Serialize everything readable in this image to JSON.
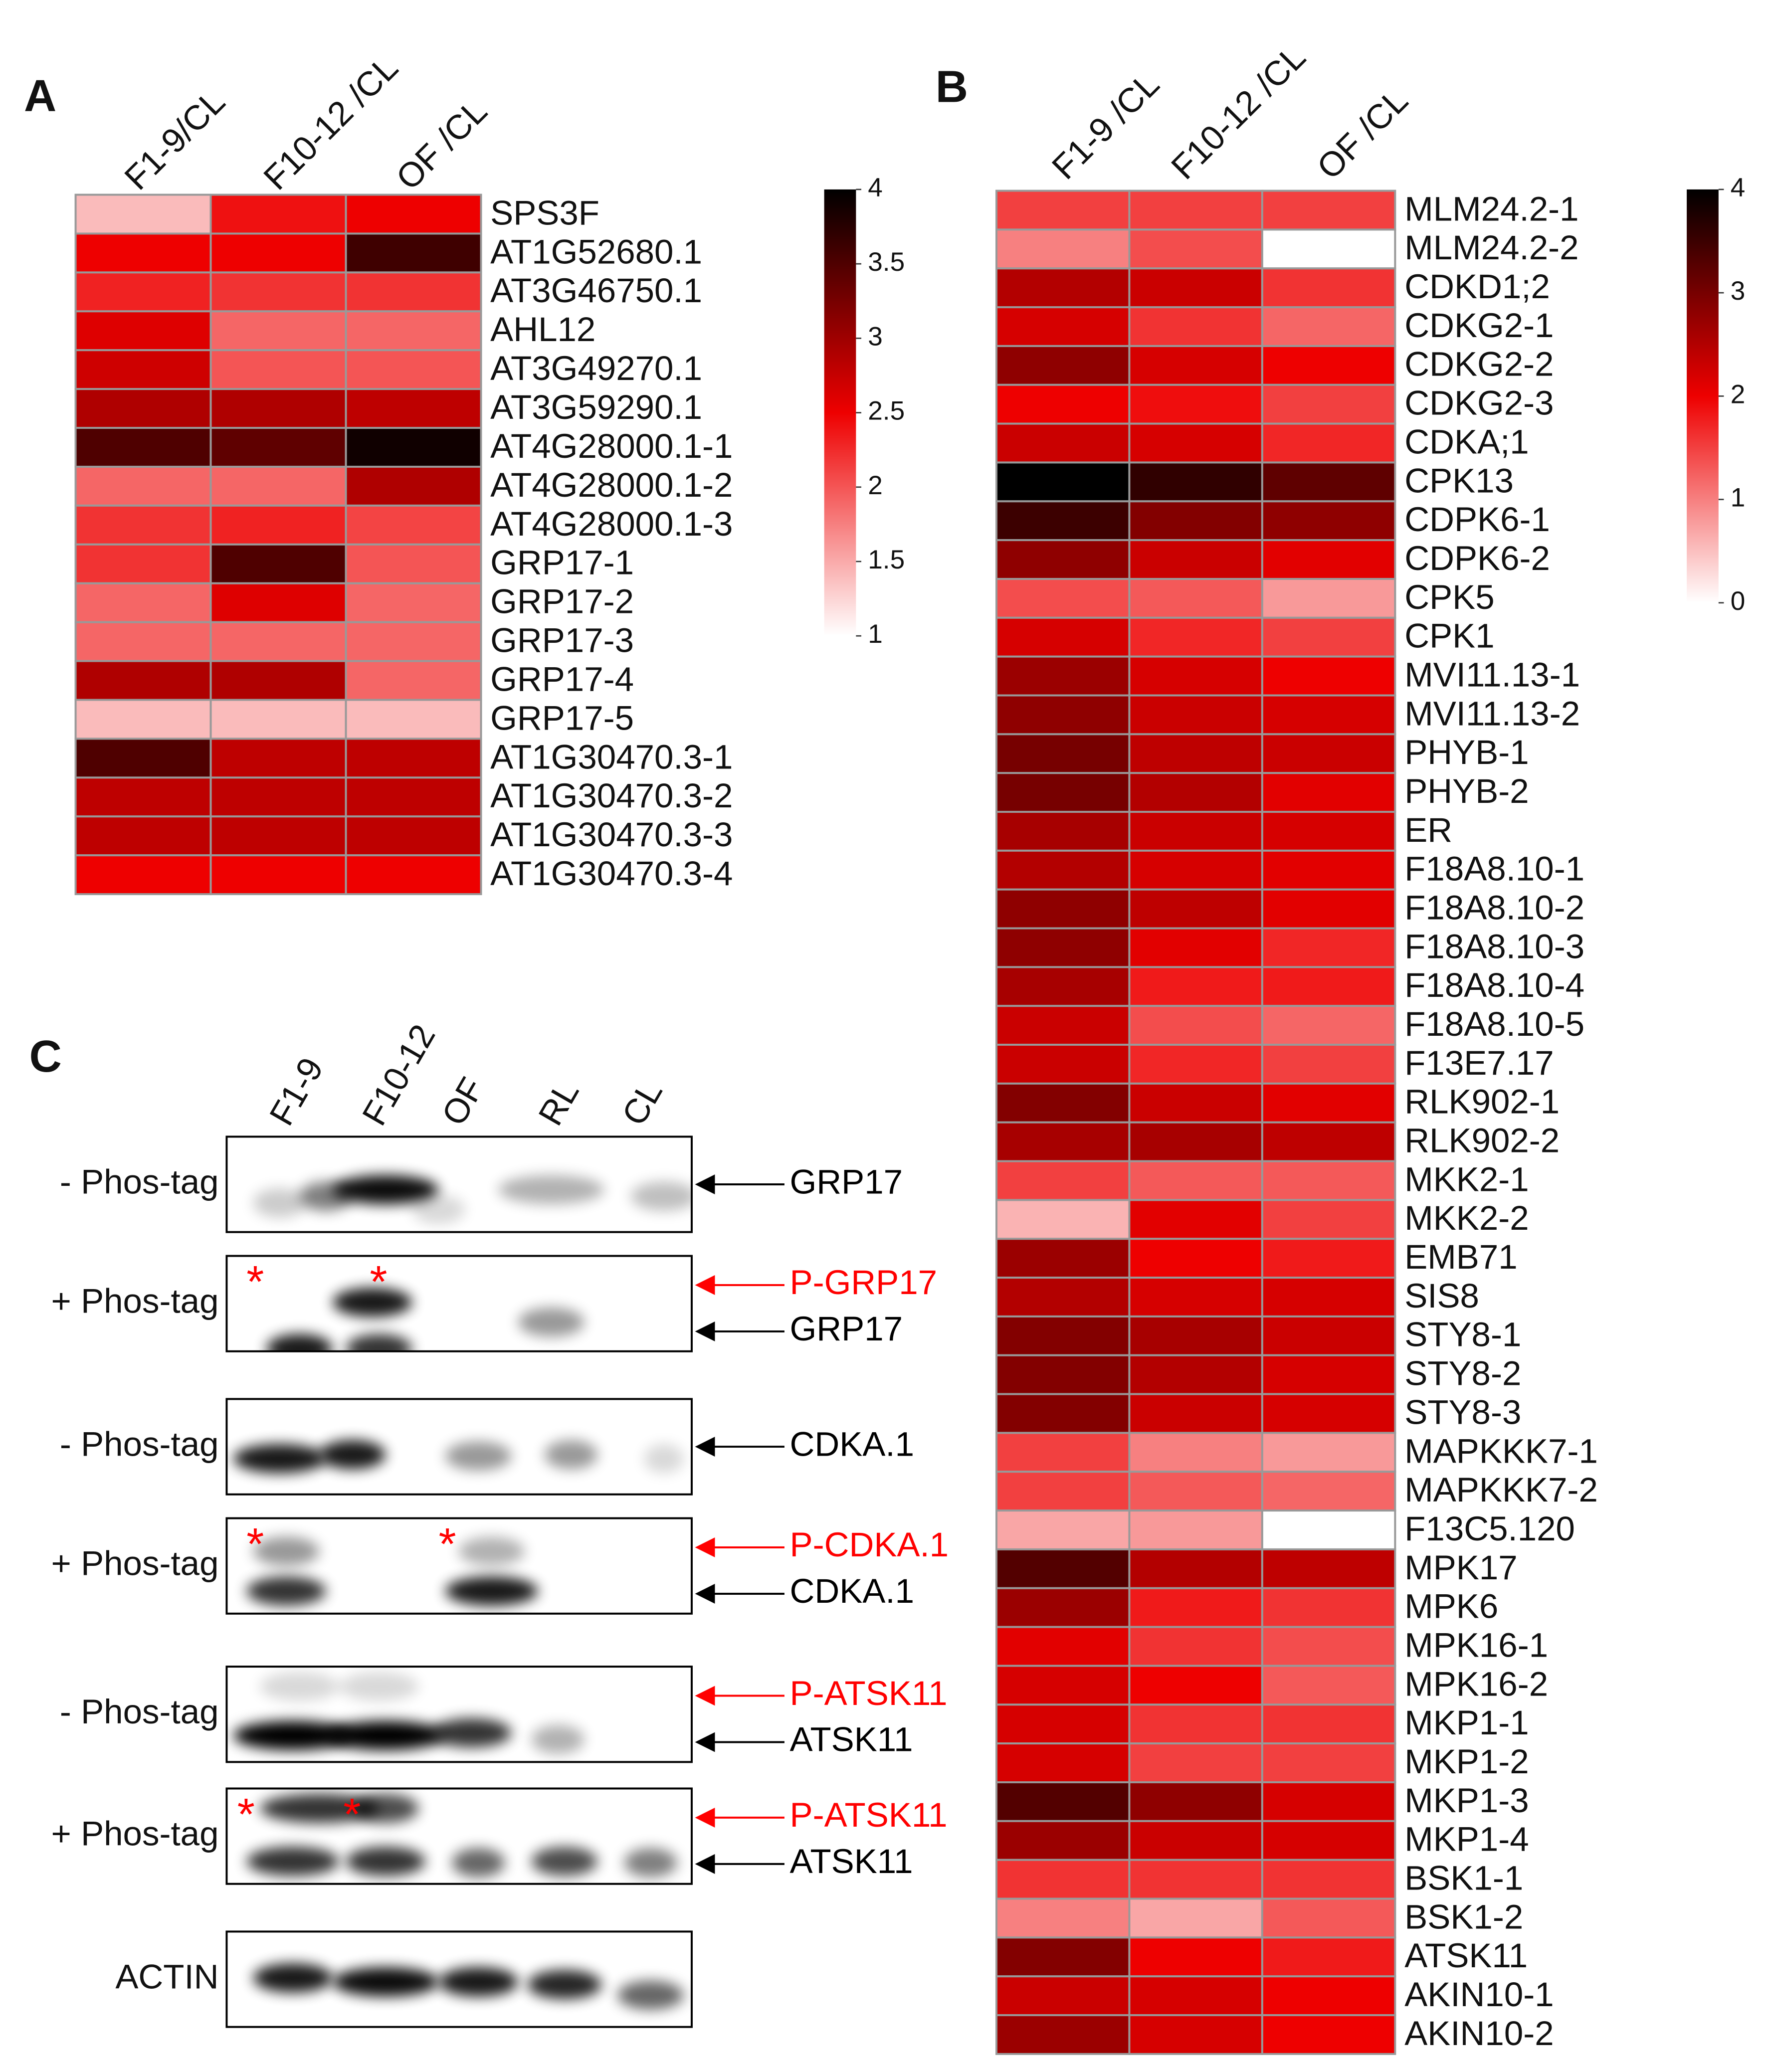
{
  "chart_data": [
    {
      "type": "heatmap",
      "panel": "A",
      "columns": [
        "F1-9/CL",
        "F10-12 /CL",
        "OF /CL"
      ],
      "rows": [
        "SPS3F",
        "AT1G52680.1",
        "AT3G46750.1",
        "AHL12",
        "AT3G49270.1",
        "AT3G59290.1",
        "AT4G28000.1-1",
        "AT4G28000.1-2",
        "AT4G28000.1-3",
        "GRP17-1",
        "GRP17-2",
        "GRP17-3",
        "GRP17-4",
        "GRP17-5",
        "AT1G30470.3-1",
        "AT1G30470.3-2",
        "AT1G30470.3-3",
        "AT1G30470.3-4"
      ],
      "values": [
        [
          1.4,
          2.4,
          2.5
        ],
        [
          2.5,
          2.5,
          3.6
        ],
        [
          2.3,
          2.2,
          2.2
        ],
        [
          2.6,
          1.9,
          1.9
        ],
        [
          2.7,
          2.0,
          2.0
        ],
        [
          2.9,
          2.9,
          2.8
        ],
        [
          3.5,
          3.4,
          3.9
        ],
        [
          1.9,
          1.9,
          2.9
        ],
        [
          2.2,
          2.3,
          2.1
        ],
        [
          2.2,
          3.5,
          2.0
        ],
        [
          1.9,
          2.6,
          1.9
        ],
        [
          1.9,
          1.9,
          1.9
        ],
        [
          2.9,
          2.9,
          1.9
        ],
        [
          1.4,
          1.4,
          1.4
        ],
        [
          3.5,
          2.8,
          2.8
        ],
        [
          2.8,
          2.8,
          2.8
        ],
        [
          2.8,
          2.8,
          2.8
        ],
        [
          2.5,
          2.5,
          2.5
        ]
      ],
      "clim": [
        1,
        4
      ],
      "cticks": [
        1,
        1.5,
        2,
        2.5,
        3,
        3.5,
        4
      ],
      "colors": [
        "#ffffff",
        "#ee0000",
        "#000000"
      ]
    },
    {
      "type": "heatmap",
      "panel": "B",
      "columns": [
        "F1-9 /CL",
        "F10-12 /CL",
        "OF /CL"
      ],
      "rows": [
        "MLM24.2-1",
        "MLM24.2-2",
        "CDKD1;2",
        "CDKG2-1",
        "CDKG2-2",
        "CDKG2-3",
        "CDKA;1",
        "CPK13",
        "CDPK6-1",
        "CDPK6-2",
        "CPK5",
        "CPK1",
        "MVI11.13-1",
        "MVI11.13-2",
        "PHYB-1",
        "PHYB-2",
        "ER",
        "F18A8.10-1",
        "F18A8.10-2",
        "F18A8.10-3",
        "F18A8.10-4",
        "F18A8.10-5",
        "F13E7.17",
        "RLK902-1",
        "RLK902-2",
        "MKK2-1",
        "MKK2-2",
        "EMB71",
        "SIS8",
        "STY8-1",
        "STY8-2",
        "STY8-3",
        "MAPKKK7-1",
        "MAPKKK7-2",
        "F13C5.120",
        "MPK17",
        "MPK6",
        "MPK16-1",
        "MPK16-2",
        "MKP1-1",
        "MKP1-2",
        "MKP1-3",
        "MKP1-4",
        "BSK1-1",
        "BSK1-2",
        "ATSK11",
        "AKIN10-1",
        "AKIN10-2"
      ],
      "values": [
        [
          1.5,
          1.5,
          1.5
        ],
        [
          1.0,
          1.4,
          0
        ],
        [
          2.5,
          2.3,
          1.6
        ],
        [
          2.2,
          1.6,
          1.2
        ],
        [
          2.8,
          2.2,
          2.0
        ],
        [
          2.0,
          1.9,
          1.5
        ],
        [
          2.3,
          2.2,
          1.7
        ],
        [
          4.0,
          3.6,
          3.2
        ],
        [
          3.5,
          2.9,
          2.8
        ],
        [
          2.8,
          2.3,
          2.1
        ],
        [
          1.4,
          1.3,
          0.8
        ],
        [
          2.2,
          1.7,
          1.5
        ],
        [
          2.7,
          2.2,
          2.0
        ],
        [
          2.8,
          2.3,
          2.2
        ],
        [
          3.0,
          2.4,
          2.3
        ],
        [
          3.0,
          2.5,
          2.1
        ],
        [
          2.6,
          2.3,
          2.2
        ],
        [
          2.5,
          2.2,
          2.1
        ],
        [
          2.8,
          2.4,
          2.1
        ],
        [
          2.8,
          2.1,
          1.7
        ],
        [
          2.6,
          1.8,
          1.8
        ],
        [
          2.3,
          1.4,
          1.2
        ],
        [
          2.3,
          1.7,
          1.5
        ],
        [
          2.9,
          2.3,
          2.1
        ],
        [
          2.6,
          2.6,
          2.4
        ],
        [
          1.5,
          1.3,
          1.3
        ],
        [
          0.6,
          2.1,
          1.5
        ],
        [
          2.7,
          2.0,
          1.8
        ],
        [
          2.5,
          2.2,
          2.2
        ],
        [
          2.9,
          2.6,
          2.3
        ],
        [
          2.9,
          2.5,
          2.2
        ],
        [
          2.9,
          2.3,
          2.2
        ],
        [
          1.5,
          1.0,
          0.8
        ],
        [
          1.5,
          1.3,
          1.2
        ],
        [
          0.7,
          0.8,
          0
        ],
        [
          3.3,
          2.5,
          2.4
        ],
        [
          2.7,
          1.8,
          1.6
        ],
        [
          2.1,
          1.6,
          1.4
        ],
        [
          2.2,
          2.0,
          1.3
        ],
        [
          2.2,
          1.6,
          1.6
        ],
        [
          2.2,
          1.5,
          1.5
        ],
        [
          3.3,
          2.8,
          2.2
        ],
        [
          2.7,
          2.3,
          2.2
        ],
        [
          1.6,
          1.6,
          1.6
        ],
        [
          1.0,
          0.7,
          1.3
        ],
        [
          2.9,
          2.0,
          1.8
        ],
        [
          2.3,
          2.2,
          2.0
        ],
        [
          2.7,
          2.2,
          2.0
        ]
      ],
      "clim": [
        0,
        4
      ],
      "cticks": [
        0,
        1,
        2,
        3,
        4
      ],
      "colors": [
        "#ffffff",
        "#ee0000",
        "#000000"
      ]
    }
  ],
  "blots": {
    "panel": "C",
    "lanes": [
      "F1-9",
      "F10-12",
      "OF",
      "RL",
      "CL"
    ],
    "rows": [
      {
        "left": "- Phos-tag",
        "right": [
          {
            "label": "GRP17",
            "color": "#000000"
          }
        ]
      },
      {
        "left": "+ Phos-tag",
        "stars": [
          "*",
          "*"
        ],
        "right": [
          {
            "label": "P-GRP17",
            "color": "#ff0000"
          },
          {
            "label": "GRP17",
            "color": "#000000"
          }
        ]
      },
      {
        "left": "- Phos-tag",
        "right": [
          {
            "label": "CDKA.1",
            "color": "#000000"
          }
        ]
      },
      {
        "left": "+ Phos-tag",
        "stars": [
          "*",
          "*"
        ],
        "right": [
          {
            "label": "P-CDKA.1",
            "color": "#ff0000"
          },
          {
            "label": "CDKA.1",
            "color": "#000000"
          }
        ]
      },
      {
        "left": "- Phos-tag",
        "right": [
          {
            "label": "P-ATSK11",
            "color": "#ff0000"
          },
          {
            "label": "ATSK11",
            "color": "#000000"
          }
        ]
      },
      {
        "left": "+ Phos-tag",
        "stars": [
          "*",
          "*"
        ],
        "right": [
          {
            "label": "P-ATSK11",
            "color": "#ff0000"
          },
          {
            "label": "ATSK11",
            "color": "#000000"
          }
        ]
      },
      {
        "left": "ACTIN"
      }
    ]
  }
}
